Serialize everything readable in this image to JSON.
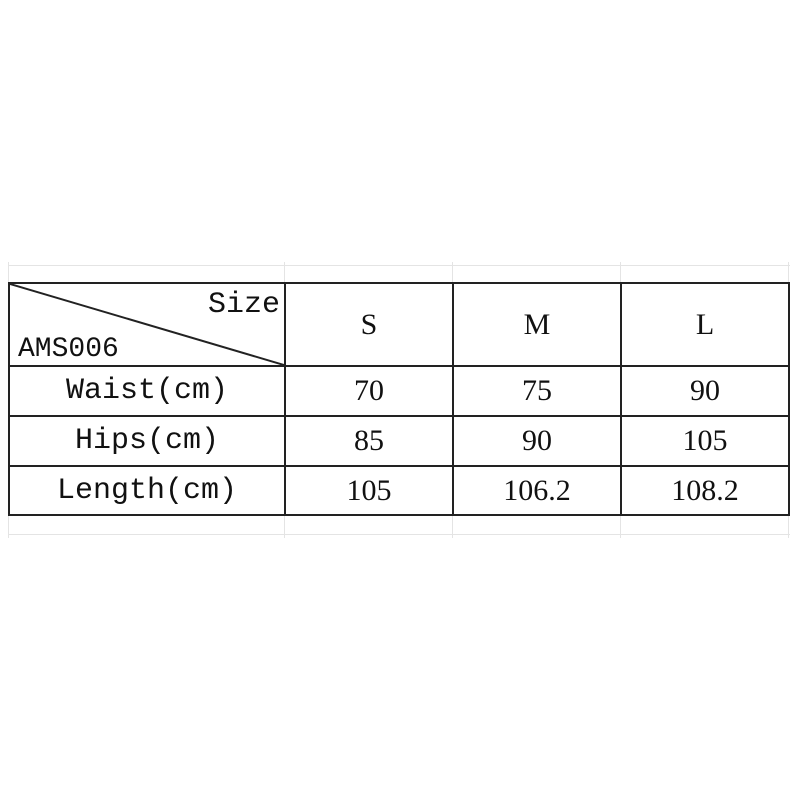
{
  "table": {
    "corner": {
      "top_right": "Size",
      "bottom_left": "AMS006"
    },
    "sizes": [
      "S",
      "M",
      "L"
    ],
    "rows": [
      {
        "label": "Waist(cm)",
        "values": [
          "70",
          "75",
          "90"
        ]
      },
      {
        "label": "Hips(cm)",
        "values": [
          "85",
          "90",
          "105"
        ]
      },
      {
        "label": "Length(cm)",
        "values": [
          "105",
          "106.2",
          "108.2"
        ]
      }
    ]
  }
}
